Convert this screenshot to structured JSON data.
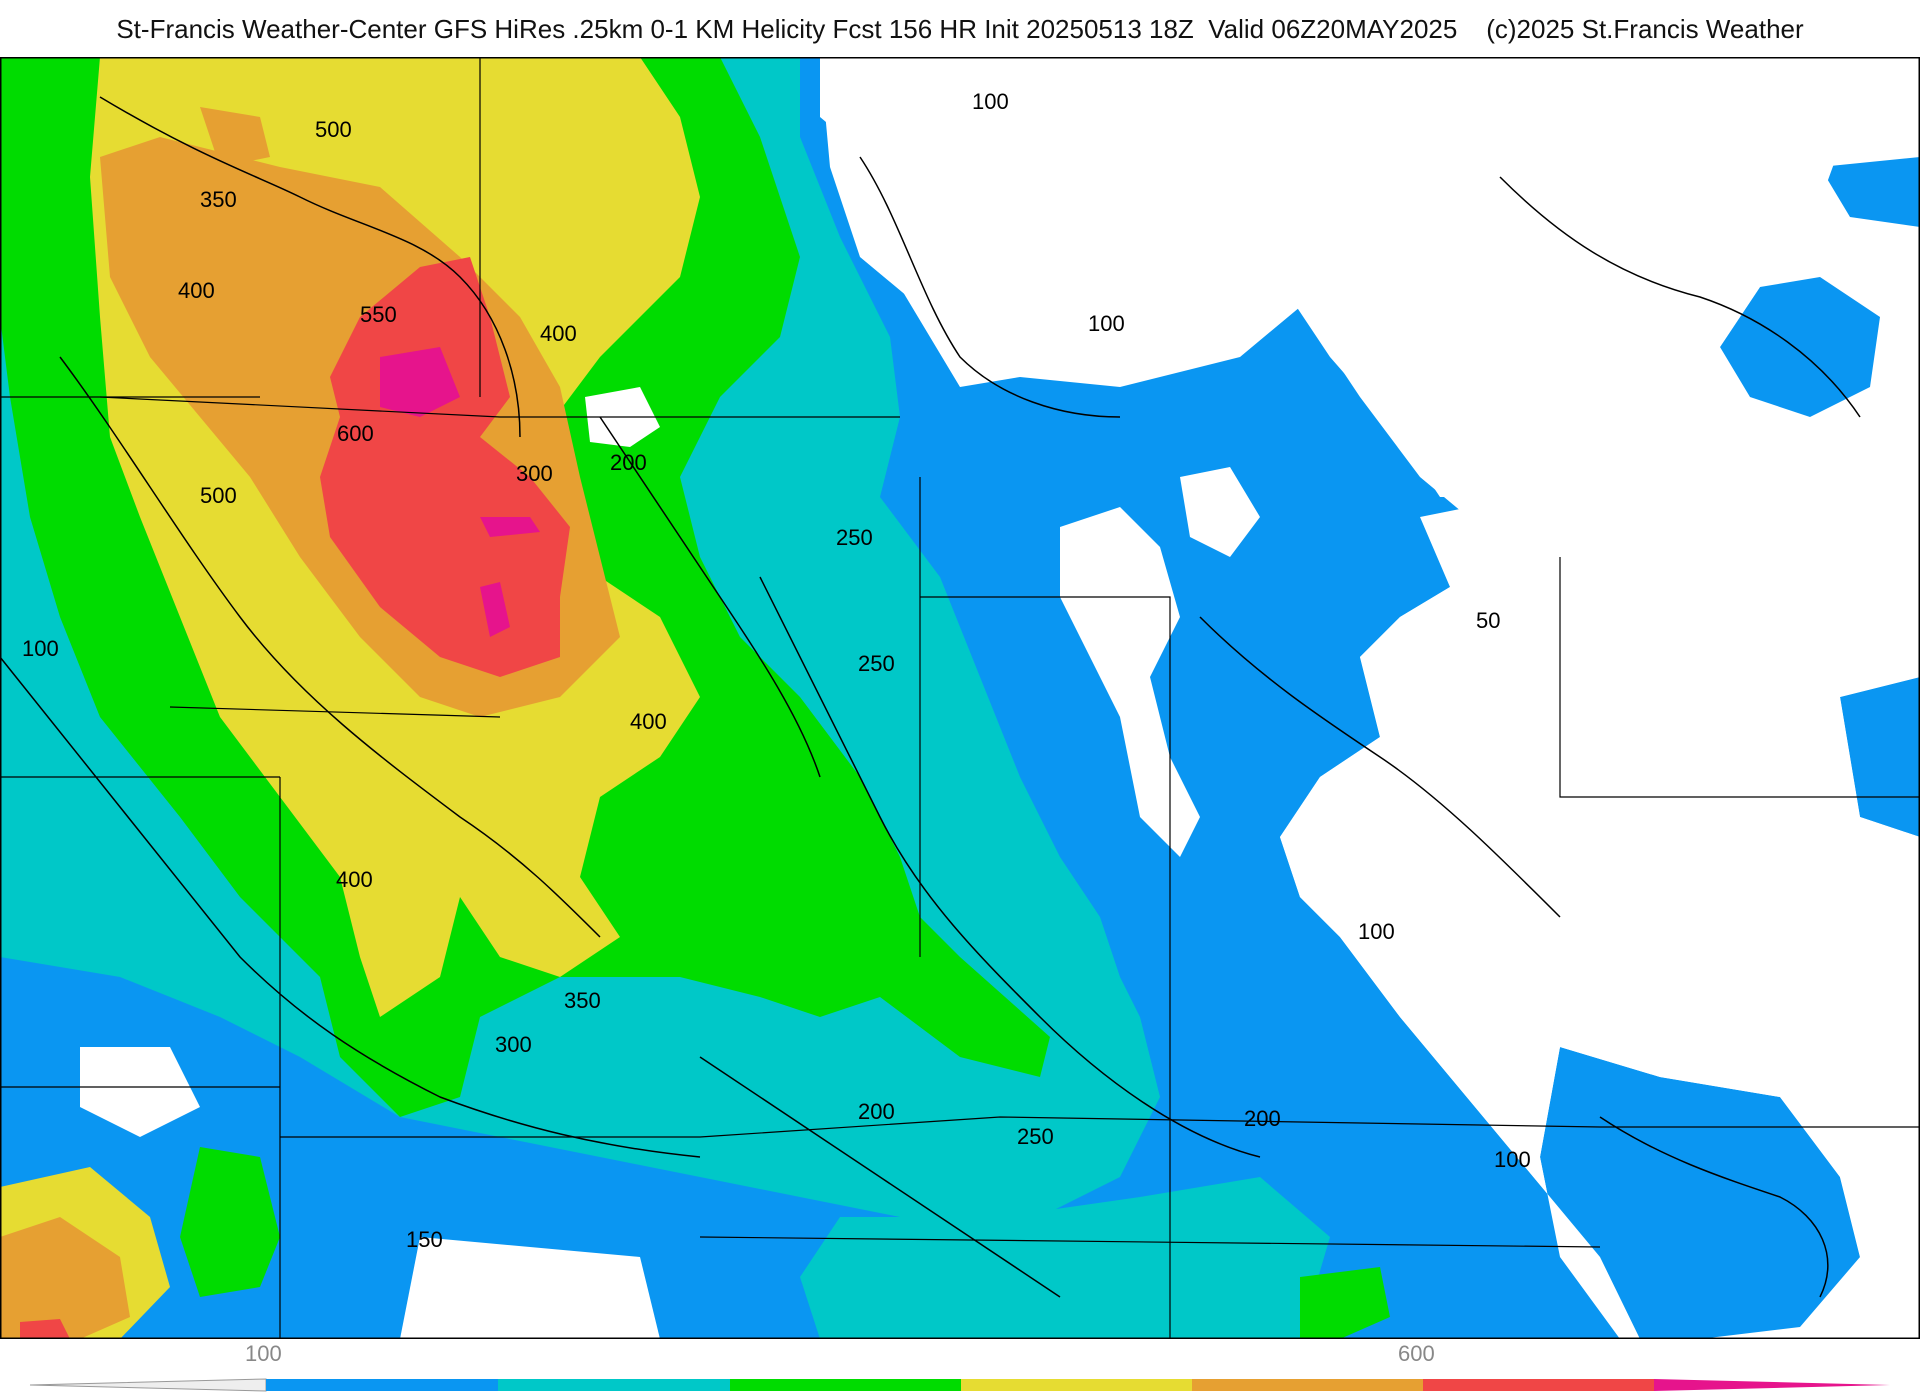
{
  "title": "St-Francis Weather-Center GFS HiRes .25km 0-1 KM Helicity Fcst 156 HR Init 20250513 18Z  Valid 06Z20MAY2025    (c)2025 St.Francis Weather",
  "colors": {
    "c100": "#0a96f2",
    "c200": "#00c8c8",
    "c300": "#00dc00",
    "c400": "#e6dc32",
    "c500": "#e6a032",
    "c600": "#f04646",
    "c700": "#e6148c",
    "background": "#ffffff"
  },
  "contour_labels": [
    "500",
    "350",
    "400",
    "550",
    "600",
    "400",
    "300",
    "200",
    "250",
    "250",
    "400",
    "500",
    "100",
    "400",
    "350",
    "300",
    "200",
    "250",
    "200",
    "100",
    "150",
    "100",
    "100",
    "50",
    "100"
  ],
  "scale": {
    "labels": [
      "100",
      "600"
    ]
  }
}
